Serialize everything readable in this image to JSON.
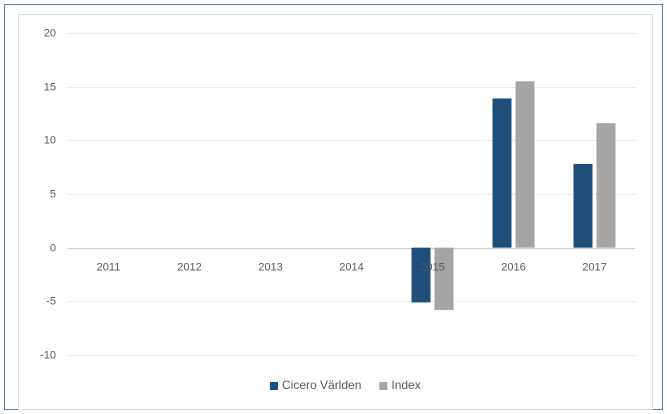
{
  "chart_data": {
    "type": "bar",
    "categories": [
      "2011",
      "2012",
      "2013",
      "2014",
      "2015",
      "2016",
      "2017"
    ],
    "series": [
      {
        "name": "Cicero Världen",
        "color": "#1f4e79",
        "values": [
          null,
          null,
          null,
          null,
          -5.1,
          13.9,
          7.8
        ]
      },
      {
        "name": "Index",
        "color": "#a5a5a5",
        "values": [
          null,
          null,
          null,
          null,
          -5.8,
          15.5,
          11.6
        ]
      }
    ],
    "ylim": [
      -10,
      20
    ],
    "yticks": [
      -10,
      -5,
      0,
      5,
      10,
      15,
      20
    ],
    "grid": true,
    "legend": "bottom"
  }
}
